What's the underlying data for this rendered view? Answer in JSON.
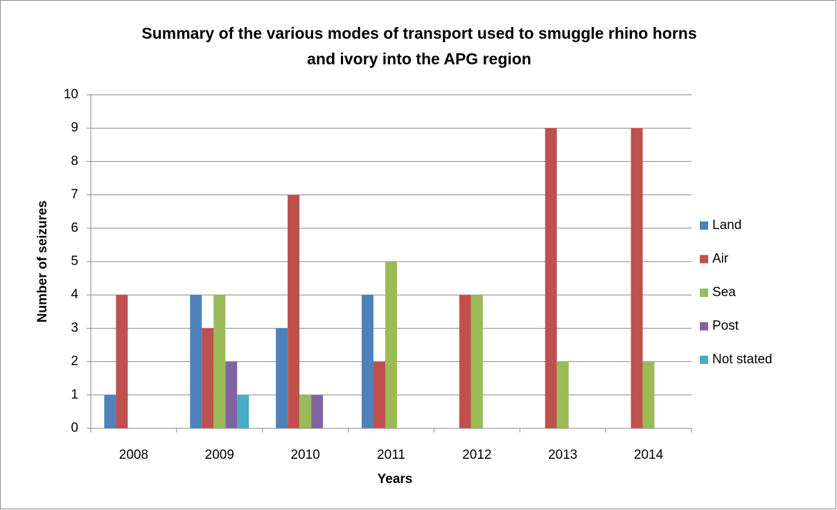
{
  "chart_data": {
    "type": "bar",
    "title": "Summary of the various modes of transport used to smuggle rhino horns and ivory into the APG region",
    "x_label": "Years",
    "y_label": "Number of seizures",
    "categories": [
      "2008",
      "2009",
      "2010",
      "2011",
      "2012",
      "2013",
      "2014"
    ],
    "series": [
      {
        "name": "Land",
        "color": "#4f81bd",
        "values": [
          1,
          4,
          3,
          4,
          0,
          0,
          0
        ]
      },
      {
        "name": "Air",
        "color": "#c0504d",
        "values": [
          4,
          3,
          7,
          2,
          4,
          9,
          9
        ]
      },
      {
        "name": "Sea",
        "color": "#9bbb59",
        "values": [
          0,
          4,
          1,
          5,
          4,
          2,
          2
        ]
      },
      {
        "name": "Post",
        "color": "#8064a2",
        "values": [
          0,
          2,
          1,
          0,
          0,
          0,
          0
        ]
      },
      {
        "name": "Not stated",
        "color": "#4bacc6",
        "values": [
          0,
          1,
          0,
          0,
          0,
          0,
          0
        ]
      }
    ],
    "ylim": [
      0,
      10
    ],
    "yticks": [
      0,
      1,
      2,
      3,
      4,
      5,
      6,
      7,
      8,
      9,
      10
    ],
    "grid": true,
    "legend": "right"
  }
}
